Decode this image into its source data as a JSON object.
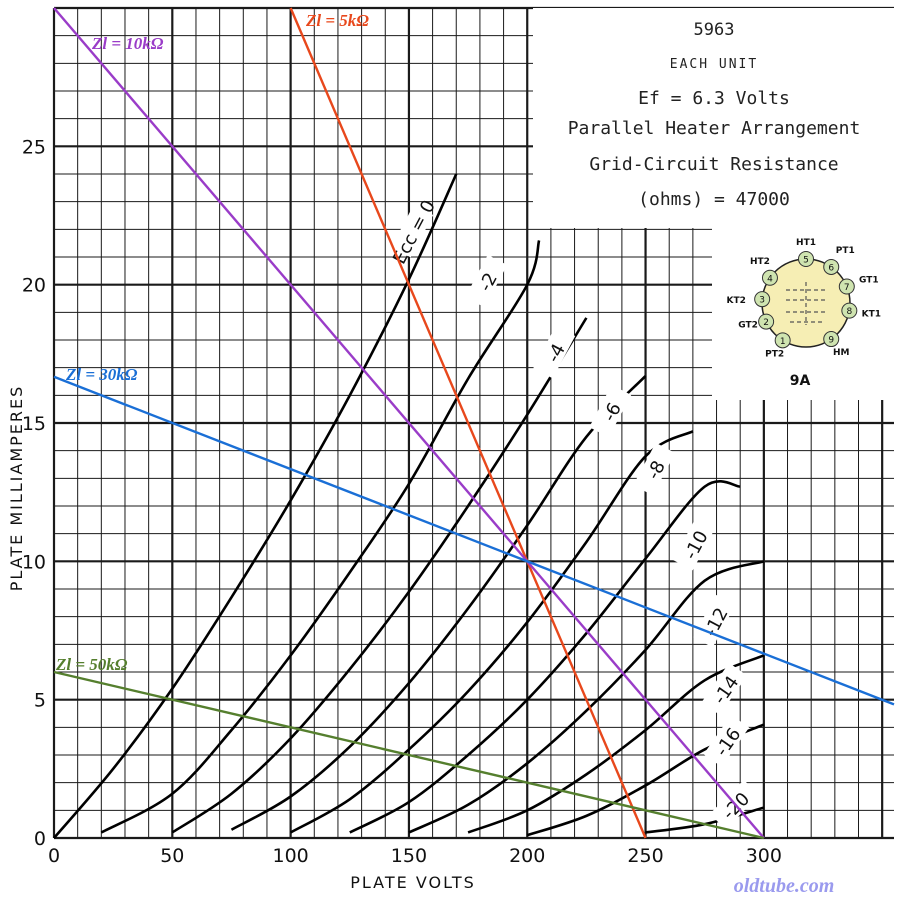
{
  "chart_data": {
    "type": "line",
    "title": "5963",
    "info_lines": [
      "EACH UNIT",
      "Ef = 6.3 Volts",
      "Parallel Heater Arrangement",
      "Grid-Circuit Resistance",
      "(ohms) = 47000"
    ],
    "xlabel": "PLATE VOLTS",
    "ylabel": "PLATE MILLIAMPERES",
    "xlim": [
      0,
      355
    ],
    "ylim": [
      0,
      30
    ],
    "x_ticks": [
      0,
      50,
      100,
      150,
      200,
      250,
      300
    ],
    "y_ticks": [
      0,
      5,
      10,
      15,
      20,
      25
    ],
    "grid": true,
    "series": [
      {
        "name": "Ecc = 0",
        "points": [
          [
            0,
            0
          ],
          [
            25,
            2.5
          ],
          [
            50,
            5.4
          ],
          [
            75,
            8.7
          ],
          [
            100,
            12.2
          ],
          [
            125,
            16
          ],
          [
            150,
            20.2
          ],
          [
            170,
            24
          ]
        ]
      },
      {
        "name": "-2",
        "points": [
          [
            20,
            0.2
          ],
          [
            50,
            1.6
          ],
          [
            75,
            3.9
          ],
          [
            100,
            6.6
          ],
          [
            125,
            9.6
          ],
          [
            150,
            12.8
          ],
          [
            175,
            16.6
          ],
          [
            200,
            20
          ],
          [
            205,
            21.6
          ]
        ]
      },
      {
        "name": "-4",
        "points": [
          [
            50,
            0.2
          ],
          [
            75,
            1.6
          ],
          [
            100,
            3.6
          ],
          [
            125,
            6.1
          ],
          [
            150,
            8.9
          ],
          [
            175,
            12
          ],
          [
            200,
            15.3
          ],
          [
            225,
            18.8
          ]
        ]
      },
      {
        "name": "-6",
        "points": [
          [
            75,
            0.3
          ],
          [
            100,
            1.5
          ],
          [
            125,
            3.3
          ],
          [
            150,
            5.6
          ],
          [
            175,
            8.3
          ],
          [
            200,
            11.3
          ],
          [
            225,
            14.5
          ],
          [
            250,
            16.7
          ]
        ]
      },
      {
        "name": "-8",
        "points": [
          [
            100,
            0.2
          ],
          [
            125,
            1.4
          ],
          [
            150,
            3.2
          ],
          [
            175,
            5.3
          ],
          [
            200,
            7.8
          ],
          [
            225,
            10.7
          ],
          [
            250,
            13.8
          ],
          [
            270,
            14.7
          ]
        ]
      },
      {
        "name": "-10",
        "points": [
          [
            125,
            0.2
          ],
          [
            150,
            1.3
          ],
          [
            175,
            3
          ],
          [
            200,
            5
          ],
          [
            225,
            7.4
          ],
          [
            250,
            10.1
          ],
          [
            275,
            12.7
          ],
          [
            290,
            12.7
          ]
        ]
      },
      {
        "name": "-12",
        "points": [
          [
            150,
            0.2
          ],
          [
            175,
            1.2
          ],
          [
            200,
            2.7
          ],
          [
            225,
            4.6
          ],
          [
            250,
            6.8
          ],
          [
            275,
            9.3
          ],
          [
            300,
            10
          ]
        ]
      },
      {
        "name": "-14",
        "points": [
          [
            175,
            0.2
          ],
          [
            200,
            1
          ],
          [
            225,
            2.3
          ],
          [
            250,
            3.9
          ],
          [
            275,
            5.7
          ],
          [
            300,
            6.6
          ]
        ]
      },
      {
        "name": "-16",
        "points": [
          [
            200,
            0.1
          ],
          [
            225,
            0.8
          ],
          [
            250,
            1.9
          ],
          [
            275,
            3.2
          ],
          [
            300,
            4.1
          ]
        ]
      },
      {
        "name": "-20",
        "points": [
          [
            250,
            0.2
          ],
          [
            275,
            0.5
          ],
          [
            300,
            1.1
          ]
        ]
      }
    ],
    "load_lines": [
      {
        "name": "Zl = 5kΩ",
        "color": "#e8481c",
        "points": [
          [
            100,
            30
          ],
          [
            250,
            0
          ]
        ]
      },
      {
        "name": "Zl = 10kΩ",
        "color": "#9a3cc8",
        "points": [
          [
            0,
            30
          ],
          [
            300,
            0
          ]
        ]
      },
      {
        "name": "Zl = 30kΩ",
        "color": "#1a6fd6",
        "points": [
          [
            0,
            16.67
          ],
          [
            355,
            4.83
          ]
        ]
      },
      {
        "name": "Zl = 50kΩ",
        "color": "#557f2e",
        "points": [
          [
            0,
            6
          ],
          [
            300,
            0
          ]
        ]
      }
    ]
  },
  "basing_diagram": {
    "label": "9A",
    "pins": [
      {
        "num": "1",
        "label": "PT2"
      },
      {
        "num": "2",
        "label": "GT2"
      },
      {
        "num": "3",
        "label": "KT2"
      },
      {
        "num": "4",
        "label": "HT2"
      },
      {
        "num": "5",
        "label": "HT1"
      },
      {
        "num": "6",
        "label": "PT1"
      },
      {
        "num": "7",
        "label": "GT1"
      },
      {
        "num": "8",
        "label": "KT1"
      },
      {
        "num": "9",
        "label": "HM"
      }
    ]
  },
  "watermark": "oldtube.com",
  "colors": {
    "grid": "#1a1a1a",
    "curve": "#000000",
    "pin_fill": "#cfe4b0",
    "bulb_fill": "#f6eeb4"
  }
}
